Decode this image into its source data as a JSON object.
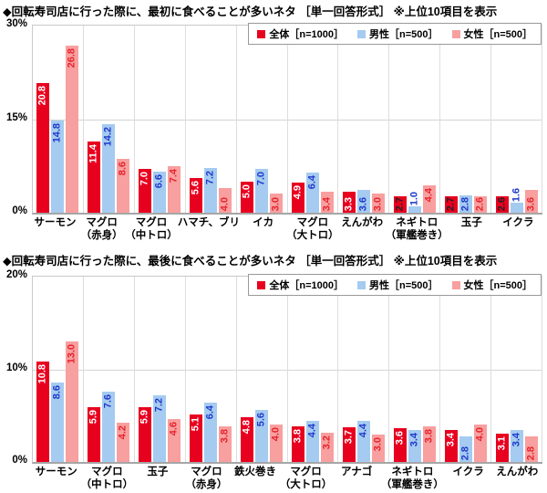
{
  "page": {
    "background": "#ffffff"
  },
  "charts": [
    {
      "title": "◆回転寿司店に行った際に、最初に食べることが多いネタ ［単一回答形式］ ※上位10項目を表示",
      "chart_data": {
        "type": "bar",
        "categories": [
          [
            "サーモン"
          ],
          [
            "マグロ",
            "（赤身）"
          ],
          [
            "マグロ",
            "（中トロ）"
          ],
          [
            "ハマチ、ブリ"
          ],
          [
            "イカ"
          ],
          [
            "マグロ",
            "（大トロ）"
          ],
          [
            "えんがわ"
          ],
          [
            "ネギトロ",
            "（軍艦巻き）"
          ],
          [
            "玉子"
          ],
          [
            "イクラ"
          ]
        ],
        "series": [
          {
            "name": "全体［n=1000］",
            "color": "#e8001f",
            "value_color_inside": "#ffffff",
            "value_color_outside": "#222222",
            "values": [
              20.8,
              11.4,
              7.0,
              5.6,
              5.0,
              4.9,
              3.3,
              2.7,
              2.7,
              2.6
            ]
          },
          {
            "name": "男性［n=500］",
            "color": "#a5cbf0",
            "value_color_inside": "#1d39cc",
            "value_color_outside": "#1d39cc",
            "values": [
              14.8,
              14.2,
              6.6,
              7.2,
              7.0,
              6.4,
              3.6,
              1.0,
              2.8,
              1.6
            ]
          },
          {
            "name": "女性［n=500］",
            "color": "#f89f9f",
            "value_color_inside": "#e6232d",
            "value_color_outside": "#e6232d",
            "values": [
              26.8,
              8.6,
              7.4,
              4.0,
              3.0,
              3.4,
              3.0,
              4.4,
              2.6,
              3.6
            ]
          }
        ],
        "ylim": [
          0,
          30
        ],
        "yticks": [
          {
            "label": "30%",
            "value": 30
          },
          {
            "label": "15%",
            "value": 15
          },
          {
            "label": "0%",
            "value": 0
          }
        ],
        "legend_position": "top-right",
        "grid": "horizontal-gridlines-and-category-separators"
      }
    },
    {
      "title": "◆回転寿司店に行った際に、最後に食べることが多いネタ ［単一回答形式］ ※上位10項目を表示",
      "chart_data": {
        "type": "bar",
        "categories": [
          [
            "サーモン"
          ],
          [
            "マグロ",
            "（中トロ）"
          ],
          [
            "玉子"
          ],
          [
            "マグロ",
            "（赤身）"
          ],
          [
            "鉄火巻き"
          ],
          [
            "マグロ",
            "（大トロ）"
          ],
          [
            "アナゴ"
          ],
          [
            "ネギトロ",
            "（軍艦巻き）"
          ],
          [
            "イクラ"
          ],
          [
            "えんがわ"
          ]
        ],
        "series": [
          {
            "name": "全体［n=1000］",
            "color": "#e8001f",
            "value_color_inside": "#ffffff",
            "value_color_outside": "#222222",
            "values": [
              10.8,
              5.9,
              5.9,
              5.1,
              4.8,
              3.8,
              3.7,
              3.6,
              3.4,
              3.1
            ]
          },
          {
            "name": "男性［n=500］",
            "color": "#a5cbf0",
            "value_color_inside": "#1d39cc",
            "value_color_outside": "#1d39cc",
            "values": [
              8.6,
              7.6,
              7.2,
              6.4,
              5.6,
              4.4,
              4.4,
              3.4,
              2.8,
              3.4
            ]
          },
          {
            "name": "女性［n=500］",
            "color": "#f89f9f",
            "value_color_inside": "#e6232d",
            "value_color_outside": "#e6232d",
            "values": [
              13.0,
              4.2,
              4.6,
              3.8,
              4.0,
              3.2,
              3.0,
              3.8,
              4.0,
              2.8
            ]
          }
        ],
        "ylim": [
          0,
          20
        ],
        "yticks": [
          {
            "label": "20%",
            "value": 20
          },
          {
            "label": "10%",
            "value": 10
          },
          {
            "label": "0%",
            "value": 0
          }
        ],
        "legend_position": "top-right",
        "grid": "horizontal-gridlines-and-category-separators"
      }
    }
  ]
}
